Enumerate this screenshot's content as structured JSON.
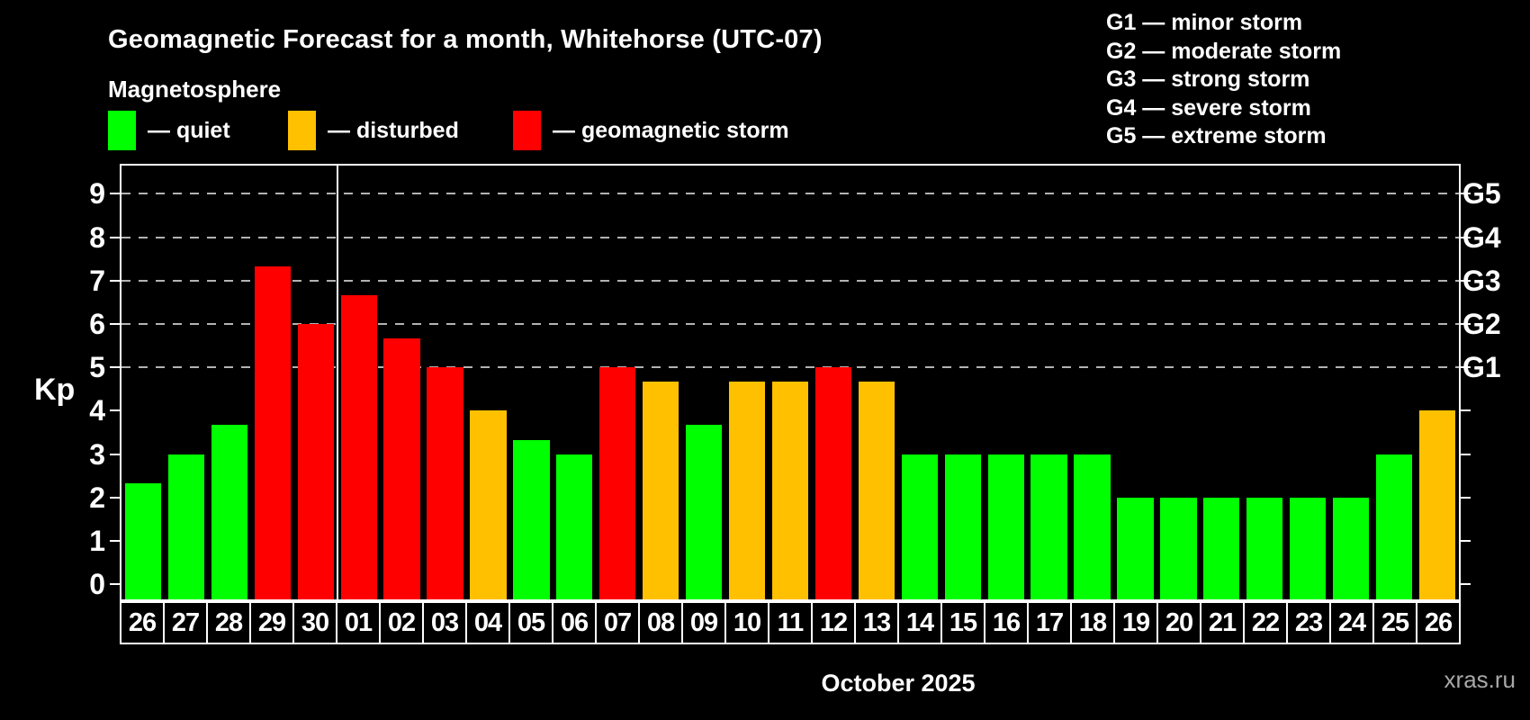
{
  "title": "Geomagnetic Forecast for a month, Whitehorse (UTC-07)",
  "subtitle": "Magnetosphere",
  "kp_legend": [
    {
      "status": "quiet",
      "label": "— quiet",
      "color": "#00ff00"
    },
    {
      "status": "disturbed",
      "label": "— disturbed",
      "color": "#ffc000"
    },
    {
      "status": "storm",
      "label": "— geomagnetic storm",
      "color": "#ff0000"
    }
  ],
  "g_legend": [
    "G1 — minor storm",
    "G2 — moderate storm",
    "G3 — strong storm",
    "G4 — severe storm",
    "G5 — extreme storm"
  ],
  "watermark": "xras.ru",
  "chart_data": {
    "type": "bar",
    "title": "Geomagnetic Forecast for a month, Whitehorse (UTC-07)",
    "xlabel": "October 2025",
    "ylabel": "Kp",
    "categories": [
      "26",
      "27",
      "28",
      "29",
      "30",
      "01",
      "02",
      "03",
      "04",
      "05",
      "06",
      "07",
      "08",
      "09",
      "10",
      "11",
      "12",
      "13",
      "14",
      "15",
      "16",
      "17",
      "18",
      "19",
      "20",
      "21",
      "22",
      "23",
      "24",
      "25",
      "26"
    ],
    "values": [
      2.33,
      3,
      3.67,
      7.33,
      6,
      6.67,
      5.67,
      5,
      4,
      3.33,
      3,
      5,
      4.67,
      3.67,
      4.67,
      4.67,
      5,
      4.67,
      3,
      3,
      3,
      3,
      3,
      2,
      2,
      2,
      2,
      2,
      2,
      3,
      4
    ],
    "statuses": [
      "quiet",
      "quiet",
      "quiet",
      "storm",
      "storm",
      "storm",
      "storm",
      "storm",
      "disturbed",
      "quiet",
      "quiet",
      "storm",
      "disturbed",
      "quiet",
      "disturbed",
      "disturbed",
      "storm",
      "disturbed",
      "quiet",
      "quiet",
      "quiet",
      "quiet",
      "quiet",
      "quiet",
      "quiet",
      "quiet",
      "quiet",
      "quiet",
      "quiet",
      "quiet",
      "disturbed"
    ],
    "colors": {
      "quiet": "#00ff00",
      "disturbed": "#ffc000",
      "storm": "#ff0000"
    },
    "ylim": [
      -0.35,
      9.65
    ],
    "y_ticks": [
      0,
      1,
      2,
      3,
      4,
      5,
      6,
      7,
      8,
      9
    ],
    "gridlines": [
      5,
      6,
      7,
      8,
      9
    ],
    "g_scale": {
      "5": "G1",
      "6": "G2",
      "7": "G3",
      "8": "G4",
      "9": "G5"
    },
    "month_boundary_index": 5,
    "grid": "dashed horizontal at storm levels only",
    "legend_position": "top"
  }
}
